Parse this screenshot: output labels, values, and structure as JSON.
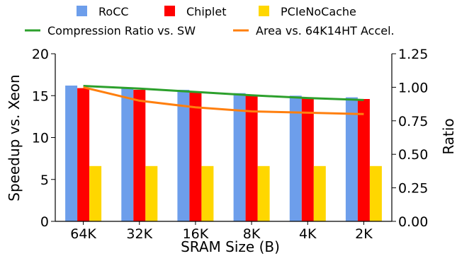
{
  "chart_data": {
    "type": "bar",
    "title": "",
    "xlabel": "SRAM Size (B)",
    "ylabel": "Speedup vs. Xeon",
    "y2label": "Ratio",
    "categories": [
      "64K",
      "32K",
      "16K",
      "8K",
      "4K",
      "2K"
    ],
    "ylim": [
      0,
      20
    ],
    "yticks": [
      0,
      5,
      10,
      15,
      20
    ],
    "y2lim": [
      0,
      1.25
    ],
    "y2ticks": [
      "0.00",
      "0.25",
      "0.50",
      "0.75",
      "1.00",
      "1.25"
    ],
    "grid": false,
    "legend_position": "top",
    "series": [
      {
        "name": "RoCC",
        "kind": "bar",
        "axis": "left",
        "color": "#6d9eeb",
        "values": [
          16.2,
          15.9,
          15.7,
          15.3,
          15.0,
          14.8
        ]
      },
      {
        "name": "Chiplet",
        "kind": "bar",
        "axis": "left",
        "color": "#ff0000",
        "values": [
          15.9,
          15.7,
          15.4,
          15.0,
          14.8,
          14.6
        ]
      },
      {
        "name": "PCIeNoCache",
        "kind": "bar",
        "axis": "left",
        "color": "#ffd700",
        "values": [
          6.6,
          6.6,
          6.6,
          6.6,
          6.6,
          6.6
        ]
      },
      {
        "name": "Compression Ratio vs. SW",
        "kind": "line",
        "axis": "right",
        "color": "#2ca02c",
        "values": [
          1.01,
          0.99,
          0.965,
          0.94,
          0.92,
          0.905
        ]
      },
      {
        "name": "Area vs. 64K14HT Accel.",
        "kind": "line",
        "axis": "right",
        "color": "#ff7f0e",
        "values": [
          1.0,
          0.9,
          0.85,
          0.82,
          0.81,
          0.8
        ]
      }
    ]
  }
}
